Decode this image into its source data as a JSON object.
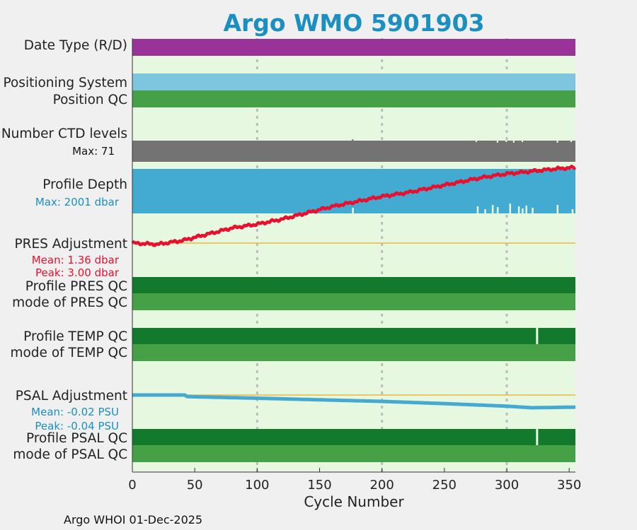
{
  "chart_data": {
    "type": "line",
    "title": "Argo WMO 5901903",
    "xlabel": "Cycle Number",
    "xlim": [
      0,
      355
    ],
    "xticks": [
      0,
      50,
      100,
      150,
      200,
      250,
      300,
      350
    ],
    "vgrid": [
      100,
      200,
      300
    ],
    "rows": {
      "date_type": "Date Type (R/D)",
      "positioning_system": "Positioning System",
      "position_qc": "Position QC",
      "n_ctd_levels": "Number CTD levels",
      "n_ctd_max": "Max: 71",
      "profile_depth": "Profile Depth",
      "profile_depth_max": "Max: 2001 dbar",
      "pres_adjustment": "PRES Adjustment",
      "pres_mean": "Mean: 1.36 dbar",
      "pres_peak": "Peak: 3.00 dbar",
      "profile_pres_qc": "Profile PRES QC",
      "mode_pres_qc": "mode of PRES QC",
      "profile_temp_qc": "Profile TEMP QC",
      "mode_temp_qc": "mode of TEMP QC",
      "psal_adjustment": "PSAL Adjustment",
      "psal_mean": "Mean: -0.02 PSU",
      "psal_peak": "Peak: -0.04 PSU",
      "profile_psal_qc": "Profile PSAL QC",
      "mode_psal_qc": "mode of PSAL QC"
    },
    "series": [
      {
        "name": "PRES Adjustment (dbar)",
        "x": [
          0,
          20,
          40,
          60,
          80,
          100,
          120,
          140,
          160,
          180,
          200,
          220,
          240,
          260,
          280,
          300,
          320,
          340,
          355
        ],
        "values": [
          0.0,
          -0.05,
          0.1,
          0.35,
          0.6,
          0.75,
          0.95,
          1.2,
          1.45,
          1.65,
          1.85,
          2.0,
          2.2,
          2.4,
          2.6,
          2.75,
          2.85,
          2.95,
          3.0
        ]
      },
      {
        "name": "PSAL Adjustment (PSU)",
        "x": [
          0,
          42,
          44,
          100,
          150,
          200,
          250,
          300,
          320,
          355
        ],
        "values": [
          0.0,
          0.0,
          -0.005,
          -0.01,
          -0.015,
          -0.02,
          -0.027,
          -0.035,
          -0.04,
          -0.038
        ]
      }
    ],
    "depth_dips": [
      176,
      276,
      282,
      288,
      292,
      302,
      309,
      312,
      315,
      320,
      340,
      352
    ],
    "temp_qc_gap": 324,
    "psal_qc_gap": 324,
    "colors": {
      "date_type": "#993399",
      "positioning": "#7ec6e0",
      "position_qc": "#46a046",
      "ctd": "#737373",
      "depth": "#43abd1",
      "pres": "#e8102e",
      "psal": "#46a9d2",
      "qc_dark": "#137a2d",
      "qc_mid": "#46a046",
      "zero_line": "#f0b53c",
      "plot_bg": "#e6f8e0"
    }
  },
  "footer": "Argo WHOI 01-Dec-2025"
}
